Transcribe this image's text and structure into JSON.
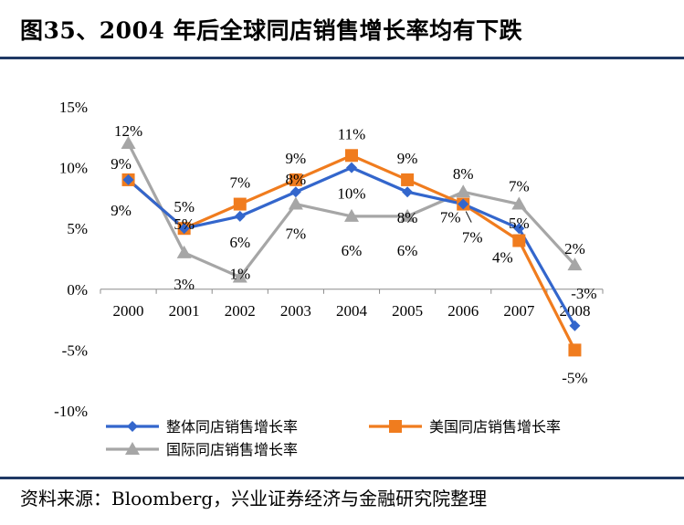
{
  "title": "图35、2004 年后全球同店销售增长率均有下跌",
  "source": "资料来源：Bloomberg，兴业证券经济与金融研究院整理",
  "chart_data": {
    "type": "line",
    "categories": [
      "2000",
      "2001",
      "2002",
      "2003",
      "2004",
      "2005",
      "2006",
      "2007",
      "2008"
    ],
    "ylim": [
      -10,
      15
    ],
    "yticks": [
      -10,
      -5,
      0,
      5,
      10,
      15
    ],
    "ytick_labels": [
      "-10%",
      "-5%",
      "0%",
      "5%",
      "10%",
      "15%"
    ],
    "legend_position": "bottom",
    "series": [
      {
        "name": "整体同店销售增长率",
        "color": "#3366cc",
        "marker": "diamond",
        "values": [
          9,
          5,
          6,
          8,
          10,
          8,
          7,
          5,
          -3
        ],
        "labels": [
          "9%",
          "5%",
          "6%",
          "8%",
          "10%",
          "8%",
          "7%",
          "5%",
          "-3%"
        ]
      },
      {
        "name": "美国同店销售增长率",
        "color": "#f07c1e",
        "marker": "square",
        "values": [
          9,
          5,
          7,
          9,
          11,
          9,
          7,
          4,
          -5
        ],
        "labels": [
          "9%",
          "5%",
          "7%",
          "9%",
          "11%",
          "9%",
          "7%",
          "4%",
          "-5%"
        ]
      },
      {
        "name": "国际同店销售增长率",
        "color": "#a6a6a6",
        "marker": "triangle",
        "values": [
          12,
          3,
          1,
          7,
          6,
          6,
          8,
          7,
          2
        ],
        "labels": [
          "12%",
          "3%",
          "1%",
          "7%",
          "6%",
          "6%",
          "8%",
          "7%",
          "2%"
        ]
      }
    ]
  }
}
